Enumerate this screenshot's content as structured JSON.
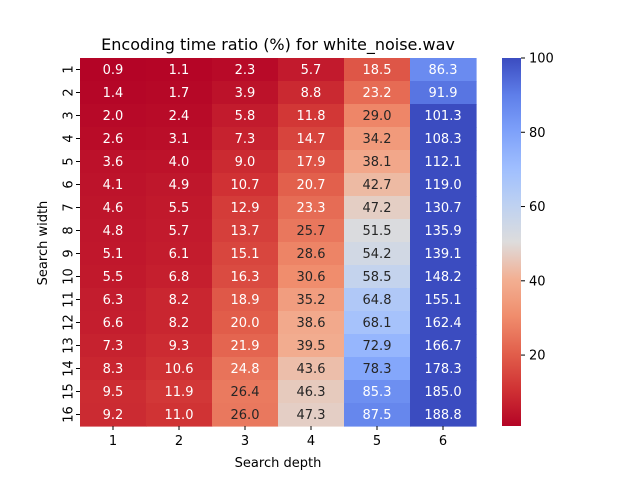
{
  "chart_data": {
    "type": "heatmap",
    "title": "Encoding time ratio (%) for white_noise.wav",
    "xlabel": "Search depth",
    "ylabel": "Search width",
    "x_categories": [
      "1",
      "2",
      "3",
      "4",
      "5",
      "6"
    ],
    "y_categories": [
      "1",
      "2",
      "3",
      "4",
      "5",
      "6",
      "7",
      "8",
      "9",
      "10",
      "11",
      "12",
      "13",
      "14",
      "15",
      "16"
    ],
    "values": [
      [
        0.9,
        1.1,
        2.3,
        5.7,
        18.5,
        86.3
      ],
      [
        1.4,
        1.7,
        3.9,
        8.8,
        23.2,
        91.9
      ],
      [
        2.0,
        2.4,
        5.8,
        11.8,
        29.0,
        101.3
      ],
      [
        2.6,
        3.1,
        7.3,
        14.7,
        34.2,
        108.3
      ],
      [
        3.6,
        4.0,
        9.0,
        17.9,
        38.1,
        112.1
      ],
      [
        4.1,
        4.9,
        10.7,
        20.7,
        42.7,
        119.0
      ],
      [
        4.6,
        5.5,
        12.9,
        23.3,
        47.2,
        130.7
      ],
      [
        4.8,
        5.7,
        13.7,
        25.7,
        51.5,
        135.9
      ],
      [
        5.1,
        6.1,
        15.1,
        28.6,
        54.2,
        139.1
      ],
      [
        5.5,
        6.8,
        16.3,
        30.6,
        58.5,
        148.2
      ],
      [
        6.3,
        8.2,
        18.9,
        35.2,
        64.8,
        155.1
      ],
      [
        6.6,
        8.2,
        20.0,
        38.6,
        68.1,
        162.4
      ],
      [
        7.3,
        9.3,
        21.9,
        39.5,
        72.9,
        166.7
      ],
      [
        8.3,
        10.6,
        24.8,
        43.6,
        78.3,
        178.3
      ],
      [
        9.5,
        11.9,
        26.4,
        46.3,
        85.3,
        185.0
      ],
      [
        9.2,
        11.0,
        26.0,
        47.3,
        87.5,
        188.8
      ]
    ],
    "colormap": "coolwarm_r",
    "color_range": [
      0,
      100
    ],
    "colorbar_ticks": [
      20,
      40,
      60,
      80,
      100
    ]
  }
}
